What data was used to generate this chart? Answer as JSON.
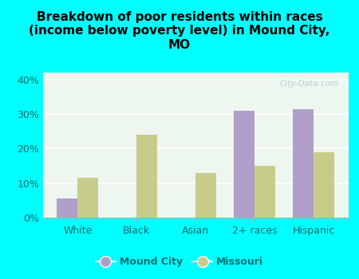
{
  "title": "Breakdown of poor residents within races\n(income below poverty level) in Mound City,\nMO",
  "categories": [
    "White",
    "Black",
    "Asian",
    "2+ races",
    "Hispanic"
  ],
  "mound_city": [
    5.5,
    0,
    0,
    31.0,
    31.5
  ],
  "missouri": [
    11.5,
    24.0,
    13.0,
    15.0,
    19.0
  ],
  "mound_city_color": "#b09fc8",
  "missouri_color": "#c8cc8a",
  "background_outer": "#00ffff",
  "background_plot": "#eef6f0",
  "text_color": "#007070",
  "ylim": [
    0,
    42
  ],
  "yticks": [
    0,
    10,
    20,
    30,
    40
  ],
  "ytick_labels": [
    "0%",
    "10%",
    "20%",
    "30%",
    "40%"
  ],
  "bar_width": 0.35,
  "title_fontsize": 11,
  "tick_fontsize": 9,
  "legend_fontsize": 9,
  "watermark": "City-Data.com"
}
